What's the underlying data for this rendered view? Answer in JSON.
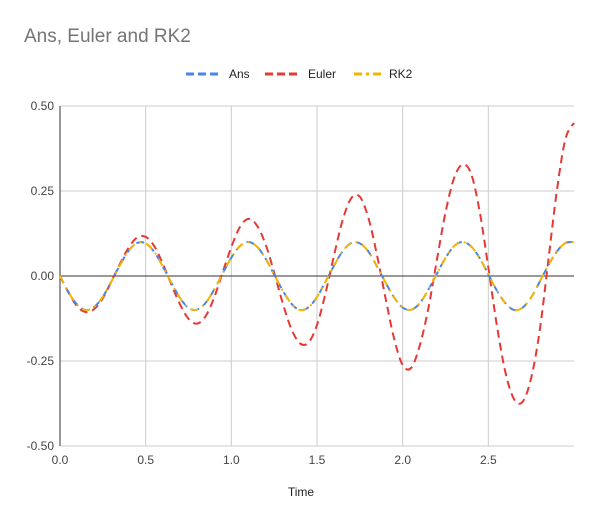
{
  "chart_data": {
    "type": "line",
    "title": "Ans, Euler and RK2",
    "xlabel": "Time",
    "ylabel": "",
    "xlim": [
      0,
      3.0
    ],
    "ylim": [
      -0.5,
      0.5
    ],
    "x_ticks": [
      0.0,
      0.5,
      1.0,
      1.5,
      2.0,
      2.5
    ],
    "x_tick_labels": [
      "0.0",
      "0.5",
      "1.0",
      "1.5",
      "2.0",
      "2.5"
    ],
    "y_ticks": [
      0.5,
      0.25,
      0.0,
      -0.25,
      -0.5
    ],
    "y_tick_labels": [
      "0.50",
      "0.25",
      "0.00",
      "-0.25",
      "-0.50"
    ],
    "grid": true,
    "legend_position": "top",
    "line_style": "dashed",
    "x": [
      0.0,
      0.05,
      0.1,
      0.15,
      0.2,
      0.25,
      0.3,
      0.35,
      0.4,
      0.45,
      0.5,
      0.55,
      0.6,
      0.65,
      0.7,
      0.75,
      0.8,
      0.85,
      0.9,
      0.95,
      1.0,
      1.05,
      1.1,
      1.15,
      1.2,
      1.25,
      1.3,
      1.35,
      1.4,
      1.45,
      1.5,
      1.55,
      1.6,
      1.65,
      1.7,
      1.75,
      1.8,
      1.85,
      1.9,
      1.95,
      2.0,
      2.05,
      2.1,
      2.15,
      2.2,
      2.25,
      2.3,
      2.35,
      2.4,
      2.45,
      2.5,
      2.55,
      2.6,
      2.65,
      2.7,
      2.75,
      2.8,
      2.85,
      2.9,
      2.95,
      3.0
    ],
    "series": [
      {
        "name": "Ans",
        "color": "#4a86e8",
        "values": [
          0.0,
          -0.048,
          -0.084,
          -0.1,
          -0.091,
          -0.061,
          -0.016,
          0.032,
          0.074,
          0.097,
          0.096,
          0.071,
          0.028,
          -0.02,
          -0.064,
          -0.094,
          -0.099,
          -0.079,
          -0.04,
          0.008,
          0.054,
          0.088,
          0.1,
          0.086,
          0.051,
          0.004,
          -0.043,
          -0.081,
          -0.1,
          -0.092,
          -0.062,
          -0.016,
          0.031,
          0.073,
          0.097,
          0.096,
          0.072,
          0.028,
          -0.019,
          -0.063,
          -0.093,
          -0.099,
          -0.08,
          -0.04,
          0.007,
          0.053,
          0.088,
          0.1,
          0.087,
          0.052,
          0.005,
          -0.043,
          -0.08,
          -0.1,
          -0.093,
          -0.063,
          -0.017,
          0.031,
          0.072,
          0.097,
          0.1
        ]
      },
      {
        "name": "Euler",
        "color": "#e53935",
        "values": [
          0.0,
          -0.049,
          -0.089,
          -0.106,
          -0.097,
          -0.065,
          -0.016,
          0.036,
          0.083,
          0.113,
          0.115,
          0.088,
          0.036,
          -0.025,
          -0.083,
          -0.126,
          -0.14,
          -0.118,
          -0.063,
          0.012,
          0.085,
          0.144,
          0.168,
          0.148,
          0.093,
          0.01,
          -0.08,
          -0.155,
          -0.198,
          -0.196,
          -0.144,
          -0.05,
          0.062,
          0.165,
          0.229,
          0.233,
          0.171,
          0.062,
          -0.065,
          -0.184,
          -0.262,
          -0.27,
          -0.204,
          -0.095,
          0.048,
          0.187,
          0.288,
          0.328,
          0.3,
          0.188,
          0.025,
          -0.146,
          -0.284,
          -0.362,
          -0.37,
          -0.3,
          -0.16,
          0.045,
          0.251,
          0.403,
          0.45
        ]
      },
      {
        "name": "RK2",
        "color": "#f4b400",
        "values": [
          0.0,
          -0.048,
          -0.084,
          -0.1,
          -0.091,
          -0.061,
          -0.016,
          0.032,
          0.074,
          0.097,
          0.096,
          0.071,
          0.028,
          -0.02,
          -0.064,
          -0.094,
          -0.099,
          -0.079,
          -0.04,
          0.008,
          0.054,
          0.088,
          0.1,
          0.086,
          0.051,
          0.004,
          -0.043,
          -0.081,
          -0.1,
          -0.092,
          -0.062,
          -0.016,
          0.031,
          0.073,
          0.097,
          0.096,
          0.072,
          0.028,
          -0.019,
          -0.063,
          -0.093,
          -0.099,
          -0.08,
          -0.04,
          0.007,
          0.053,
          0.088,
          0.1,
          0.087,
          0.052,
          0.005,
          -0.043,
          -0.08,
          -0.1,
          -0.093,
          -0.063,
          -0.017,
          0.031,
          0.072,
          0.097,
          0.1
        ]
      }
    ]
  }
}
